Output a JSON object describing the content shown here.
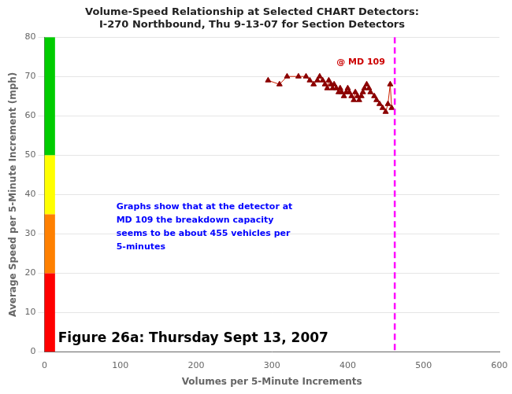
{
  "chart_data": {
    "type": "scatter",
    "title": [
      "Volume-Speed Relationship at Selected CHART Detectors:",
      "I-270 Northbound, Thu 9-13-07 for Section Detectors"
    ],
    "xlabel": "Volumes per 5-Minute Increments",
    "ylabel": "Average Speed per 5-Minute Increment (mph)",
    "xlim": [
      0,
      600
    ],
    "ylim": [
      0,
      80
    ],
    "xticks": [
      0,
      100,
      200,
      300,
      400,
      500,
      600
    ],
    "yticks": [
      0,
      10,
      20,
      30,
      40,
      50,
      60,
      70,
      80
    ],
    "grid": "y",
    "x": [
      295,
      310,
      320,
      335,
      345,
      350,
      355,
      360,
      363,
      367,
      370,
      373,
      375,
      378,
      380,
      382,
      385,
      388,
      390,
      392,
      395,
      398,
      400,
      402,
      405,
      408,
      410,
      413,
      415,
      418,
      420,
      422,
      425,
      428,
      430,
      435,
      438,
      442,
      446,
      450,
      453,
      456,
      458
    ],
    "series": [
      {
        "type": "line",
        "color": "#CC2200",
        "line_style": "solid",
        "values": [
          69,
          68,
          70,
          70,
          70,
          69,
          68,
          69,
          70,
          69,
          68,
          67,
          69,
          68,
          67,
          68,
          67,
          66,
          67,
          66,
          65,
          66,
          67,
          66,
          65,
          64,
          66,
          65,
          64,
          65,
          66,
          67,
          68,
          67,
          66,
          65,
          64,
          63,
          62,
          61,
          63,
          68,
          62
        ]
      },
      {
        "type": "scatter",
        "color": "#8B0000",
        "marker": "triangle",
        "values": [
          69,
          68,
          70,
          70,
          70,
          69,
          68,
          69,
          70,
          69,
          68,
          67,
          69,
          68,
          67,
          68,
          67,
          66,
          67,
          66,
          65,
          66,
          67,
          66,
          65,
          64,
          66,
          65,
          64,
          65,
          66,
          67,
          68,
          67,
          66,
          65,
          64,
          63,
          62,
          61,
          63,
          68,
          62
        ]
      }
    ],
    "bands": [
      {
        "ymin": 0,
        "ymax": 20,
        "color": "#FF0000"
      },
      {
        "ymin": 20,
        "ymax": 35,
        "color": "#FF8000"
      },
      {
        "ymin": 35,
        "ymax": 50,
        "color": "#FFFF00"
      },
      {
        "ymin": 50,
        "ymax": 80,
        "color": "#00CC00"
      }
    ],
    "reference_line": {
      "x": 462,
      "color": "#FF00FF",
      "line_style": "dashed"
    },
    "annotations": [
      {
        "text": "@ MD 109",
        "color": "#CC0000"
      },
      {
        "text": "Graphs show that at the detector at\nMD 109 the breakdown capacity\nseems to be about 455 vehicles per\n5-minutes",
        "color": "#0000FF"
      },
      {
        "text": "Figure 26a: Thursday Sept 13, 2007",
        "color": "#000000"
      }
    ]
  }
}
